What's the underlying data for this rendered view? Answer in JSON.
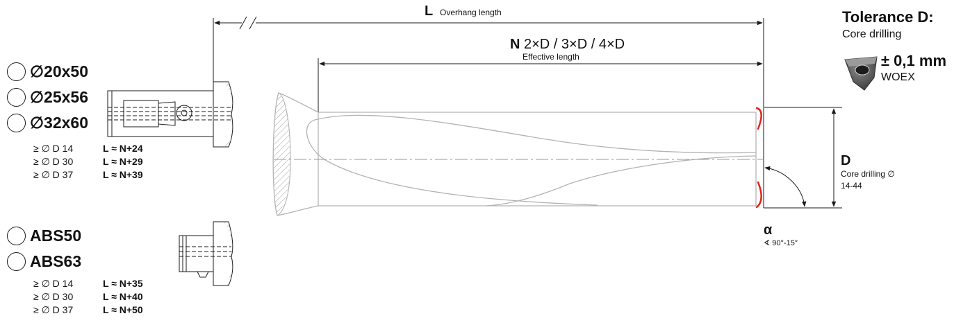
{
  "overhang": {
    "letter": "L",
    "caption": "Overhang length"
  },
  "effective": {
    "letter": "N",
    "values": "2×D / 3×D / 4×D",
    "caption": "Effective length"
  },
  "tolerance": {
    "title": "Tolerance D:",
    "subtitle": "Core drilling",
    "value": "± 0,1 mm",
    "insert": "WOEX"
  },
  "diameter": {
    "letter": "D",
    "caption": "Core drilling ∅",
    "range": "14-44"
  },
  "angle": {
    "symbol": "α",
    "caption": "∢ 90°-15°"
  },
  "shank_cylindrical": {
    "options": [
      "∅20x50",
      "∅25x56",
      "∅32x60"
    ],
    "rows": [
      {
        "cond": "≥ ∅ D 14",
        "formula": "L ≈ N+24"
      },
      {
        "cond": "≥ ∅ D 30",
        "formula": "L ≈ N+29"
      },
      {
        "cond": "≥ ∅ D 37",
        "formula": "L ≈ N+39"
      }
    ]
  },
  "shank_abs": {
    "options": [
      "ABS50",
      "ABS63"
    ],
    "rows": [
      {
        "cond": "≥ ∅ D 14",
        "formula": "L ≈ N+35"
      },
      {
        "cond": "≥ ∅ D 30",
        "formula": "L ≈ N+40"
      },
      {
        "cond": "≥ ∅ D 37",
        "formula": "L ≈ N+50"
      }
    ]
  },
  "colors": {
    "line": "#1a1a1a",
    "body": "#b3b3b3",
    "cutting_edge": "#e2231a"
  }
}
